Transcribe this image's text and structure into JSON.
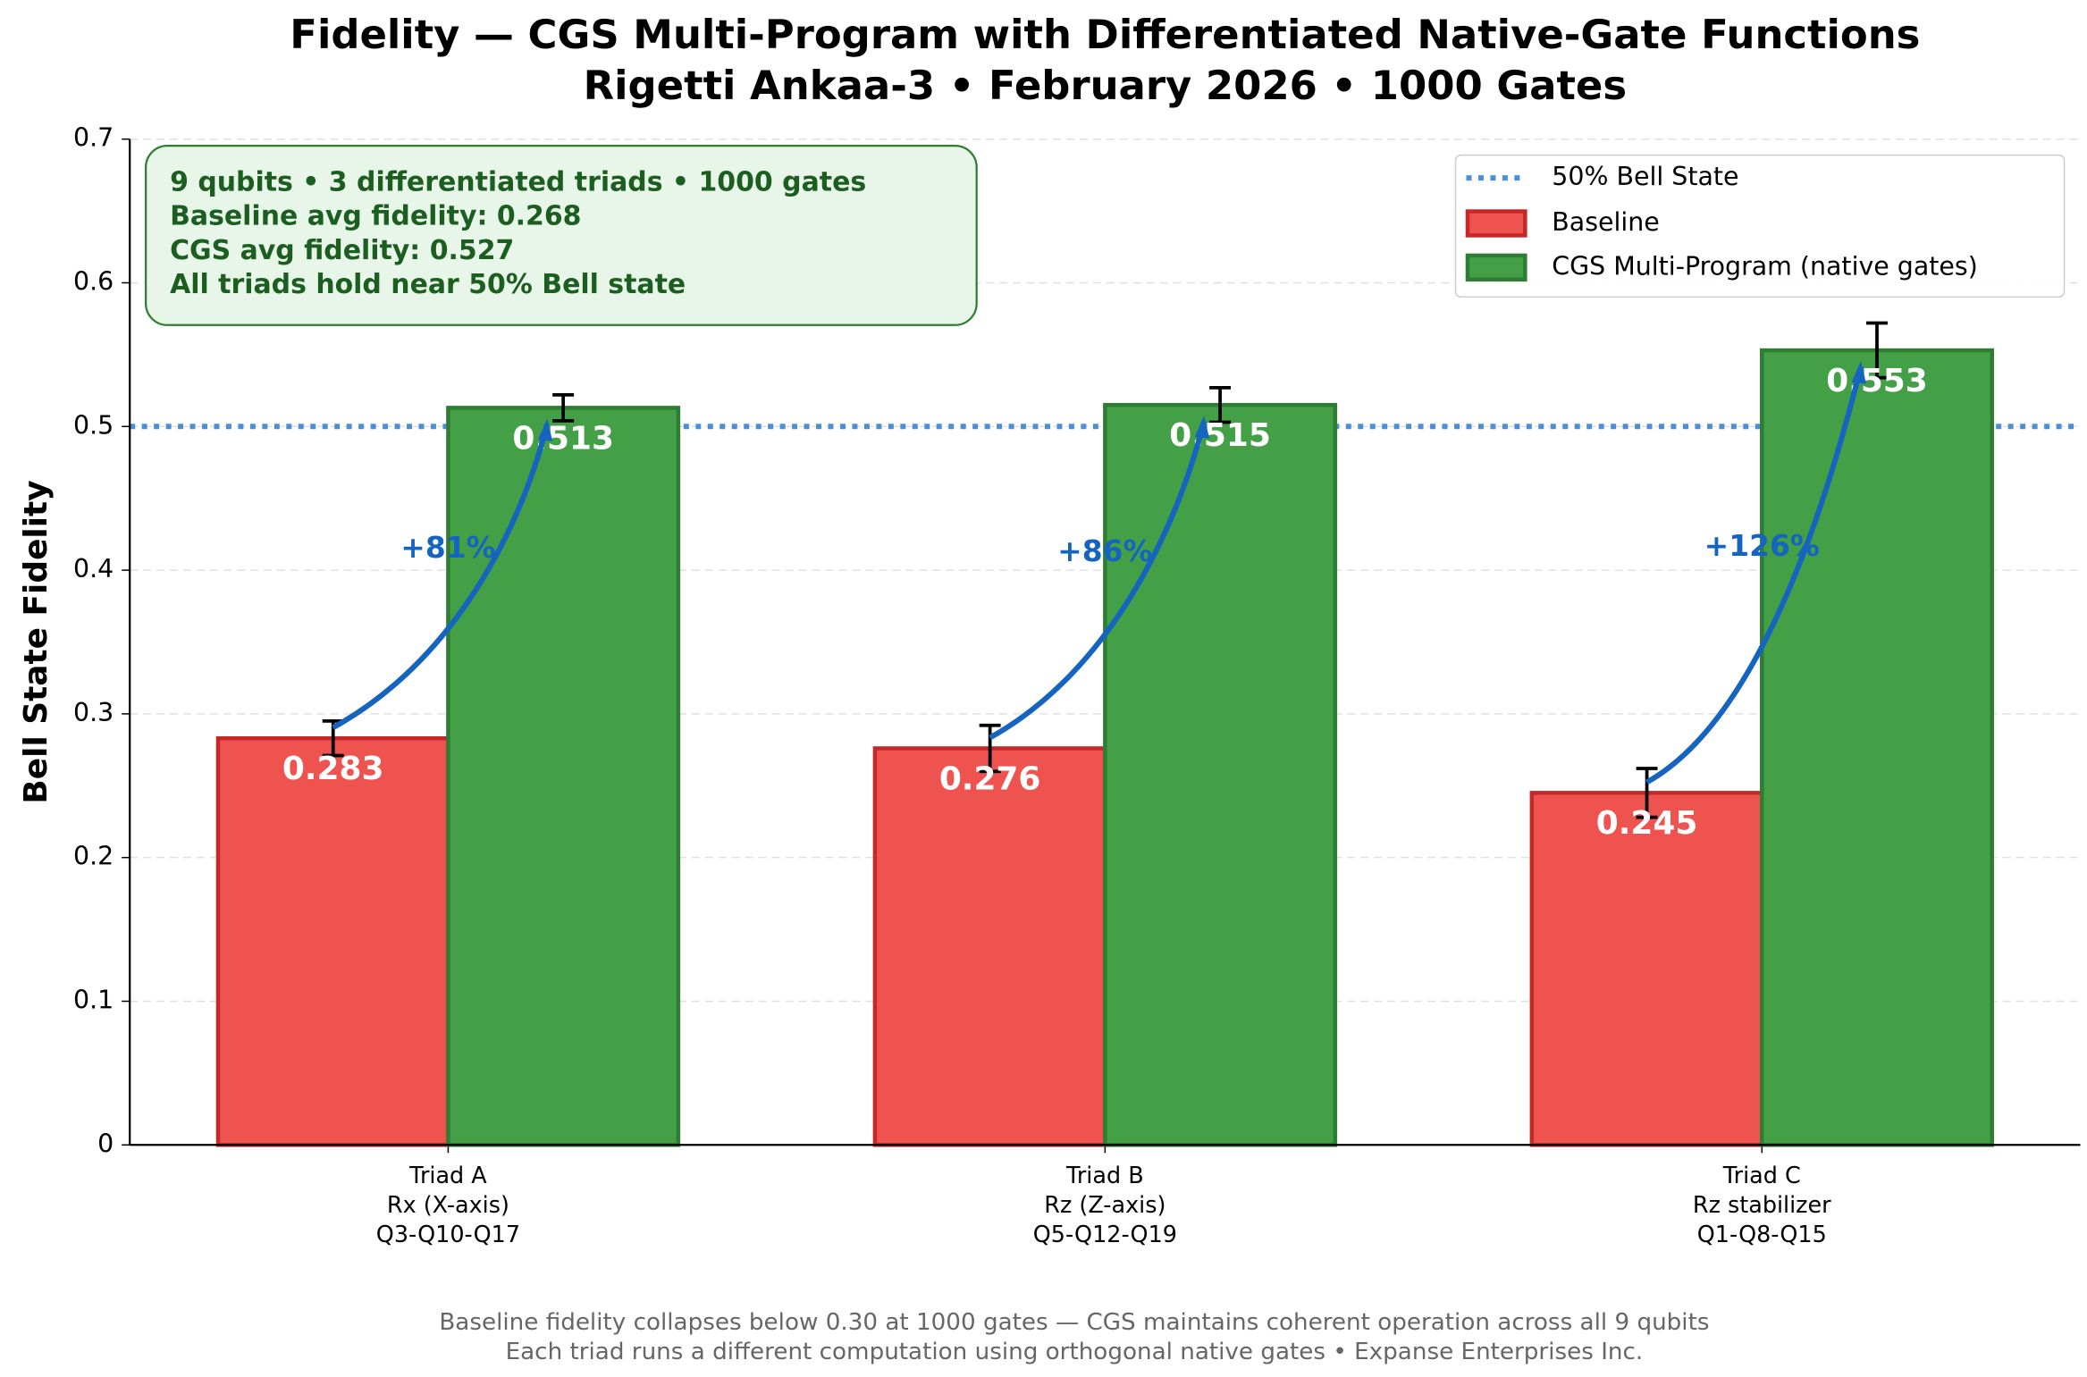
{
  "chart_data": {
    "type": "bar",
    "title": "Fidelity — CGS Multi-Program with Differentiated Native-Gate Functions",
    "subtitle": "Rigetti Ankaa-3 • February 2026 • 1000 Gates",
    "y_label": "Bell State Fidelity",
    "categories": [
      [
        "Triad A",
        "Rx (X-axis)",
        "Q3-Q10-Q17"
      ],
      [
        "Triad B",
        "Rz (Z-axis)",
        "Q5-Q12-Q19"
      ],
      [
        "Triad C",
        "Rz stabilizer",
        "Q1-Q8-Q15"
      ]
    ],
    "series": [
      {
        "name": "Baseline",
        "color": "#ef5350",
        "edge": "#c62828",
        "values": [
          0.283,
          0.276,
          0.245
        ],
        "errors": [
          0.012,
          0.016,
          0.017
        ]
      },
      {
        "name": "CGS Multi-Program (native gates)",
        "color": "#43a047",
        "edge": "#2e7d32",
        "values": [
          0.513,
          0.515,
          0.553
        ],
        "errors": [
          0.009,
          0.012,
          0.019
        ]
      }
    ],
    "improvements": [
      {
        "value": 81,
        "label": "+81%"
      },
      {
        "value": 86,
        "label": "+86%"
      },
      {
        "value": 126,
        "label": "+126%"
      }
    ],
    "reference_line": {
      "value": 0.5,
      "name": "50% Bell State",
      "color": "#4a90d9"
    },
    "info_box": [
      "9 qubits • 3 differentiated triads • 1000 gates",
      "Baseline avg fidelity: 0.268",
      "CGS avg fidelity: 0.527",
      "All triads hold near 50% Bell state"
    ],
    "footer": [
      "Baseline fidelity collapses below 0.30 at 1000 gates — CGS maintains coherent operation across all 9 qubits",
      "Each triad runs a different computation using orthogonal native gates • Expanse Enterprises Inc."
    ],
    "ylim": [
      0,
      0.7
    ],
    "yticks": [
      0,
      0.1,
      0.2,
      0.3,
      0.4,
      0.5,
      0.6,
      0.7
    ],
    "grid": true,
    "legend": "upper right"
  }
}
